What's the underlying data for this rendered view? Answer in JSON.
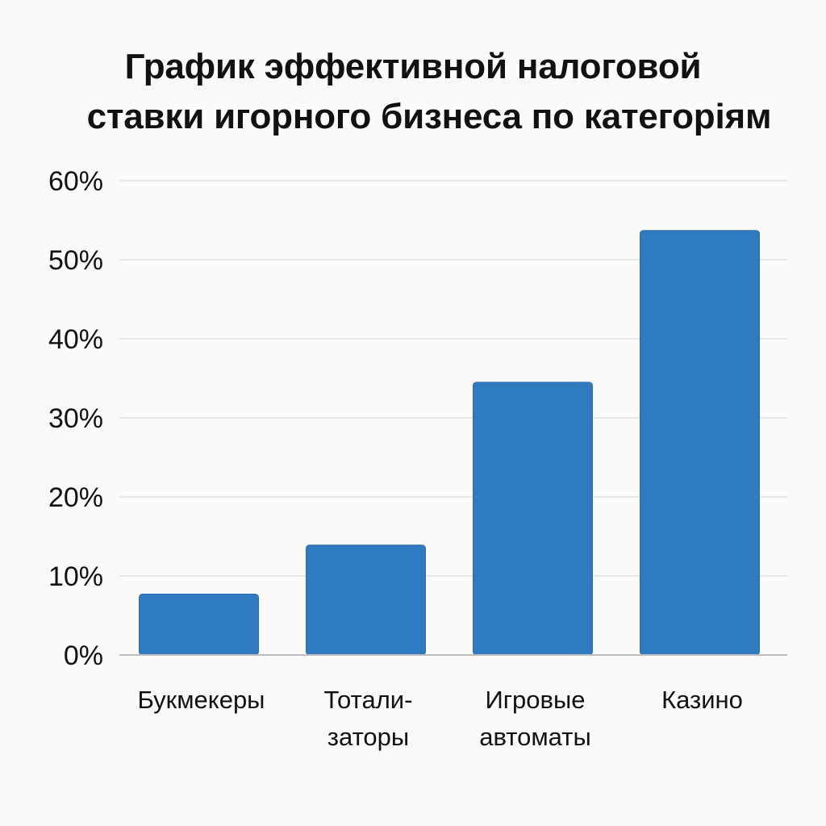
{
  "chart_data": {
    "type": "bar",
    "title_lines": [
      "График эффективной налоговой",
      "ставки игорного бизнеса по категорiям"
    ],
    "categories": [
      [
        "Букмекеры"
      ],
      [
        "Тотали-",
        "заторы"
      ],
      [
        "Игровые",
        "автоматы"
      ],
      [
        "Казино"
      ]
    ],
    "values": [
      7.7,
      13.9,
      34.5,
      53.7
    ],
    "y_ticks": [
      "0%",
      "10%",
      "20%",
      "30%",
      "40%",
      "50%",
      "60%"
    ],
    "ylim": [
      0,
      60
    ],
    "grid": true,
    "bar_color": "#2f7bbf",
    "grid_color": "#e2e2e2",
    "axis_color": "#bdbdbd"
  }
}
